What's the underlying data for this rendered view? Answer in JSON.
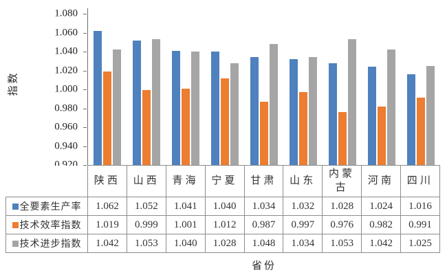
{
  "chart_data": {
    "type": "bar",
    "title": "",
    "xlabel": "省份",
    "ylabel": "指数",
    "categories": [
      "陕西",
      "山西",
      "青海",
      "宁夏",
      "甘肃",
      "山东",
      "内蒙古",
      "河南",
      "四川"
    ],
    "series": [
      {
        "name": "全要素生产率",
        "color": "#4E81BD",
        "values": [
          1.062,
          1.052,
          1.041,
          1.04,
          1.034,
          1.032,
          1.028,
          1.024,
          1.016
        ]
      },
      {
        "name": "技术效率指数",
        "color": "#ED7D31",
        "values": [
          1.019,
          0.999,
          1.001,
          1.012,
          0.987,
          0.997,
          0.976,
          0.982,
          0.991
        ]
      },
      {
        "name": "技术进步指数",
        "color": "#A5A5A5",
        "values": [
          1.042,
          1.053,
          1.04,
          1.028,
          1.048,
          1.034,
          1.053,
          1.042,
          1.025
        ]
      }
    ],
    "ylim": [
      0.92,
      1.08
    ],
    "ytick_step": 0.02,
    "yticks": [
      "1.080",
      "1.060",
      "1.040",
      "1.020",
      "1.000",
      "0.980",
      "0.960",
      "0.940",
      "0.920"
    ],
    "value_decimals": 3,
    "grid": false,
    "legend_position": "table-left-column",
    "axis_color": "#6e6e6e",
    "table_border_color": "#8c8c8c"
  }
}
